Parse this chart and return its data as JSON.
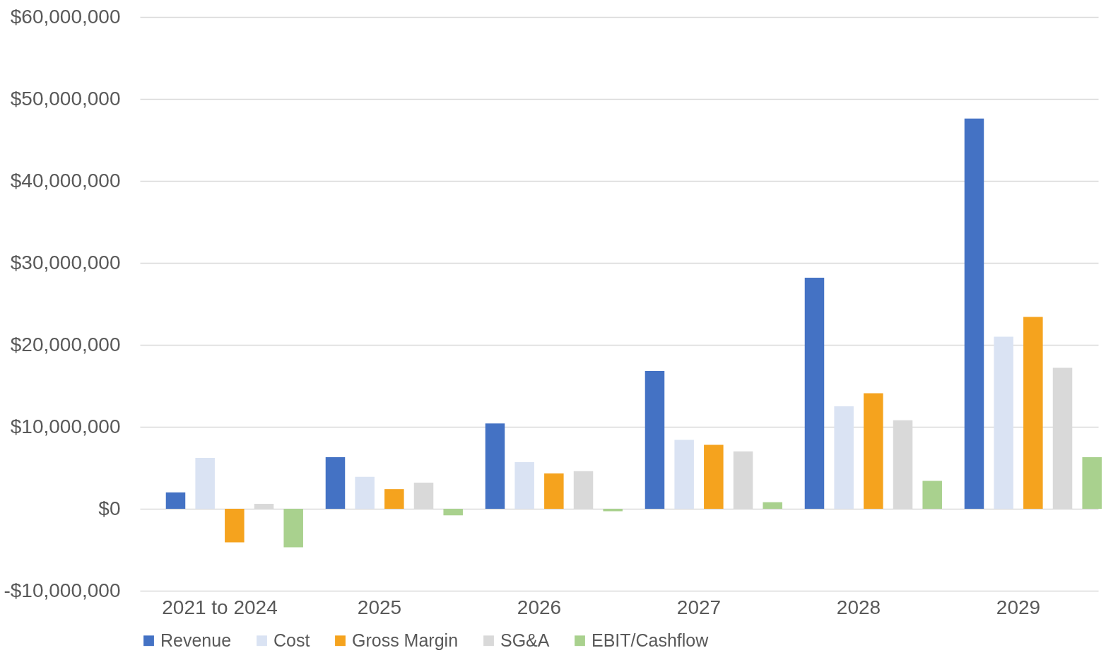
{
  "chart_data": {
    "type": "bar",
    "categories": [
      "2021 to 2024",
      "2025",
      "2026",
      "2027",
      "2028",
      "2029"
    ],
    "series": [
      {
        "name": "Revenue",
        "color": "#4472c4",
        "values": [
          2000000,
          6300000,
          10400000,
          16800000,
          28200000,
          47600000
        ]
      },
      {
        "name": "Cost",
        "color": "#dae3f3",
        "values": [
          6200000,
          3900000,
          5700000,
          8400000,
          12500000,
          21000000
        ]
      },
      {
        "name": "Gross Margin",
        "color": "#f5a31e",
        "values": [
          -4100000,
          2400000,
          4300000,
          7800000,
          14100000,
          23400000
        ]
      },
      {
        "name": "SG&A",
        "color": "#d9d9d9",
        "values": [
          600000,
          3200000,
          4600000,
          7000000,
          10800000,
          17200000
        ]
      },
      {
        "name": "EBIT/Cashflow",
        "color": "#a9d18e",
        "values": [
          -4700000,
          -800000,
          -300000,
          800000,
          3400000,
          6300000
        ]
      }
    ],
    "ylim": [
      -10000000,
      60000000
    ],
    "yticks": [
      {
        "value": -10000000,
        "label": "-$10,000,000"
      },
      {
        "value": 0,
        "label": "$0"
      },
      {
        "value": 10000000,
        "label": "$10,000,000"
      },
      {
        "value": 20000000,
        "label": "$20,000,000"
      },
      {
        "value": 30000000,
        "label": "$30,000,000"
      },
      {
        "value": 40000000,
        "label": "$40,000,000"
      },
      {
        "value": 50000000,
        "label": "$50,000,000"
      },
      {
        "value": 60000000,
        "label": "$60,000,000"
      }
    ],
    "grid": "y",
    "legend": "bottom"
  }
}
